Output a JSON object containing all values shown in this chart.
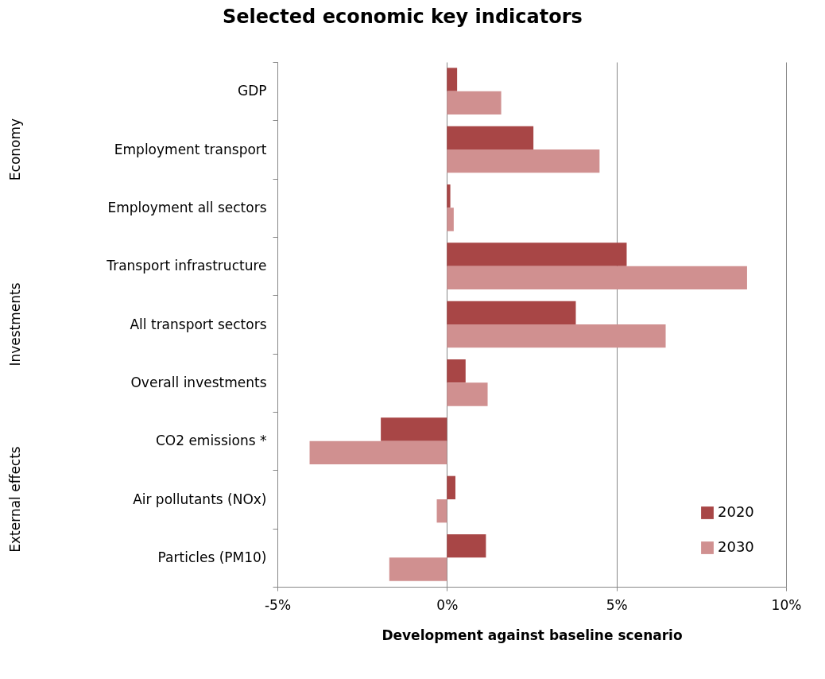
{
  "chart_data": {
    "type": "bar",
    "orientation": "horizontal",
    "title": "Selected economic key indicators",
    "xlabel": "Development against baseline scenario",
    "categories": [
      "GDP",
      "Employment transport",
      "Employment all sectors",
      "Transport infrastructure",
      "All transport sectors",
      "Overall investments",
      "CO2 emissions *",
      "Air pollutants (NOx)",
      "Particles (PM10)"
    ],
    "series": [
      {
        "name": "2020",
        "color": "#a84646",
        "values": [
          0.3,
          2.55,
          0.1,
          5.3,
          3.8,
          0.55,
          -1.95,
          0.25,
          1.15
        ]
      },
      {
        "name": "2030",
        "color": "#d09090",
        "values": [
          1.6,
          4.5,
          0.2,
          8.85,
          6.45,
          1.2,
          -4.05,
          -0.3,
          -1.7
        ]
      }
    ],
    "xlim": [
      -5,
      10
    ],
    "xticks": [
      {
        "value": -5,
        "label": "-5%"
      },
      {
        "value": 0,
        "label": "0%"
      },
      {
        "value": 5,
        "label": "5%"
      },
      {
        "value": 10,
        "label": "10%"
      }
    ],
    "grid": "x",
    "legend": "bottom right",
    "annotations": [
      "Economy",
      "Investments",
      "External effects"
    ]
  }
}
